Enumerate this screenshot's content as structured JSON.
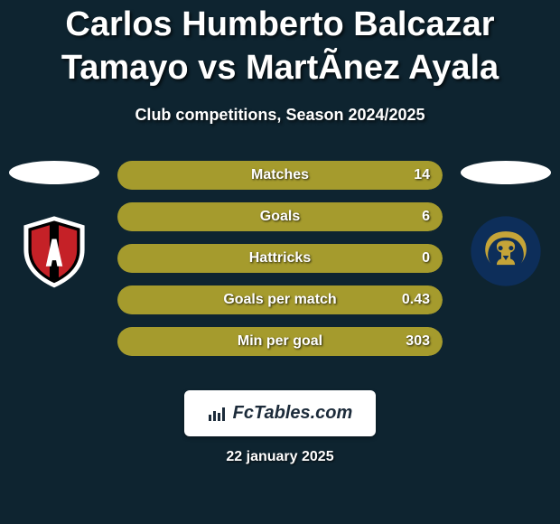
{
  "header": {
    "title": "Carlos Humberto Balcazar Tamayo vs MartÃ­nez Ayala",
    "title_fontsize": 38,
    "subtitle": "Club competitions, Season 2024/2025",
    "subtitle_fontsize": 18
  },
  "teams": {
    "left": {
      "halo_color": "#ffffff",
      "crest": "atlas",
      "crest_colors": {
        "outer": "#ffffff",
        "body": "#c52127",
        "stripe": "#000000"
      }
    },
    "right": {
      "halo_color": "#ffffff",
      "crest": "pumas",
      "crest_colors": {
        "outer": "#0d2e5a",
        "inner": "#c5a438"
      }
    }
  },
  "stats_style": {
    "left_color": "#a59b2d",
    "right_color": "#a59b2d",
    "track_bg": "#0e2430",
    "label_fontsize": 16
  },
  "stats": [
    {
      "label": "Matches",
      "left_value": "",
      "right_value": "14",
      "left_pct": 4,
      "right_pct": 96
    },
    {
      "label": "Goals",
      "left_value": "",
      "right_value": "6",
      "left_pct": 4,
      "right_pct": 96
    },
    {
      "label": "Hattricks",
      "left_value": "",
      "right_value": "0",
      "left_pct": 4,
      "right_pct": 96
    },
    {
      "label": "Goals per match",
      "left_value": "",
      "right_value": "0.43",
      "left_pct": 4,
      "right_pct": 96
    },
    {
      "label": "Min per goal",
      "left_value": "",
      "right_value": "303",
      "left_pct": 4,
      "right_pct": 96
    }
  ],
  "footer": {
    "site": "FcTables.com",
    "date": "22 january 2025"
  },
  "colors": {
    "background": "#0e2430",
    "text": "#ffffff"
  }
}
